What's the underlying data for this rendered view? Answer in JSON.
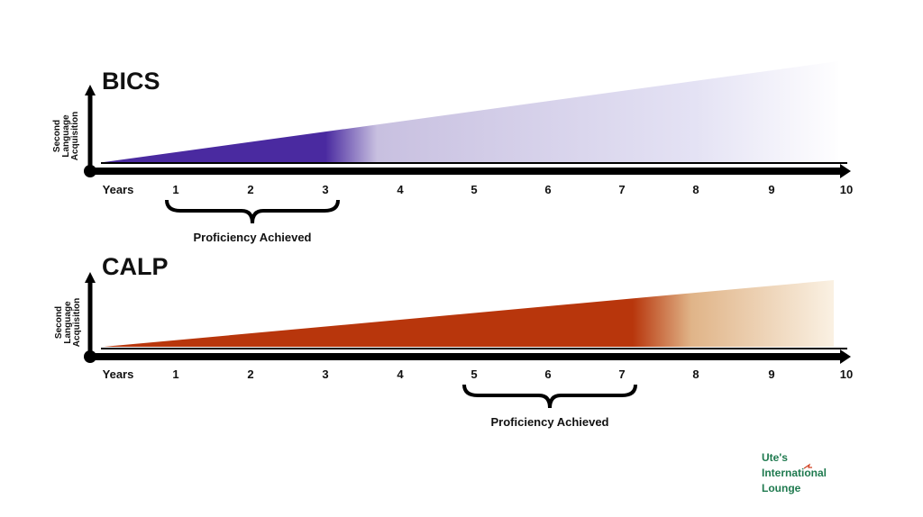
{
  "panels": [
    {
      "title": "BICS",
      "y_label_lines": [
        "Second",
        "Language",
        "Acquisition"
      ],
      "x_labels": [
        "Years",
        "1",
        "2",
        "3",
        "4",
        "5",
        "6",
        "7",
        "8",
        "9",
        "10"
      ],
      "proficiency_label": "Proficiency Achieved"
    },
    {
      "title": "CALP",
      "y_label_lines": [
        "Second",
        "Language",
        "Acquisition"
      ],
      "x_labels": [
        "Years",
        "1",
        "2",
        "3",
        "4",
        "5",
        "6",
        "7",
        "8",
        "9",
        "10"
      ],
      "proficiency_label": "Proficiency Achieved"
    }
  ],
  "logo": {
    "lines": [
      "Ute's",
      "International",
      "Lounge"
    ]
  }
}
